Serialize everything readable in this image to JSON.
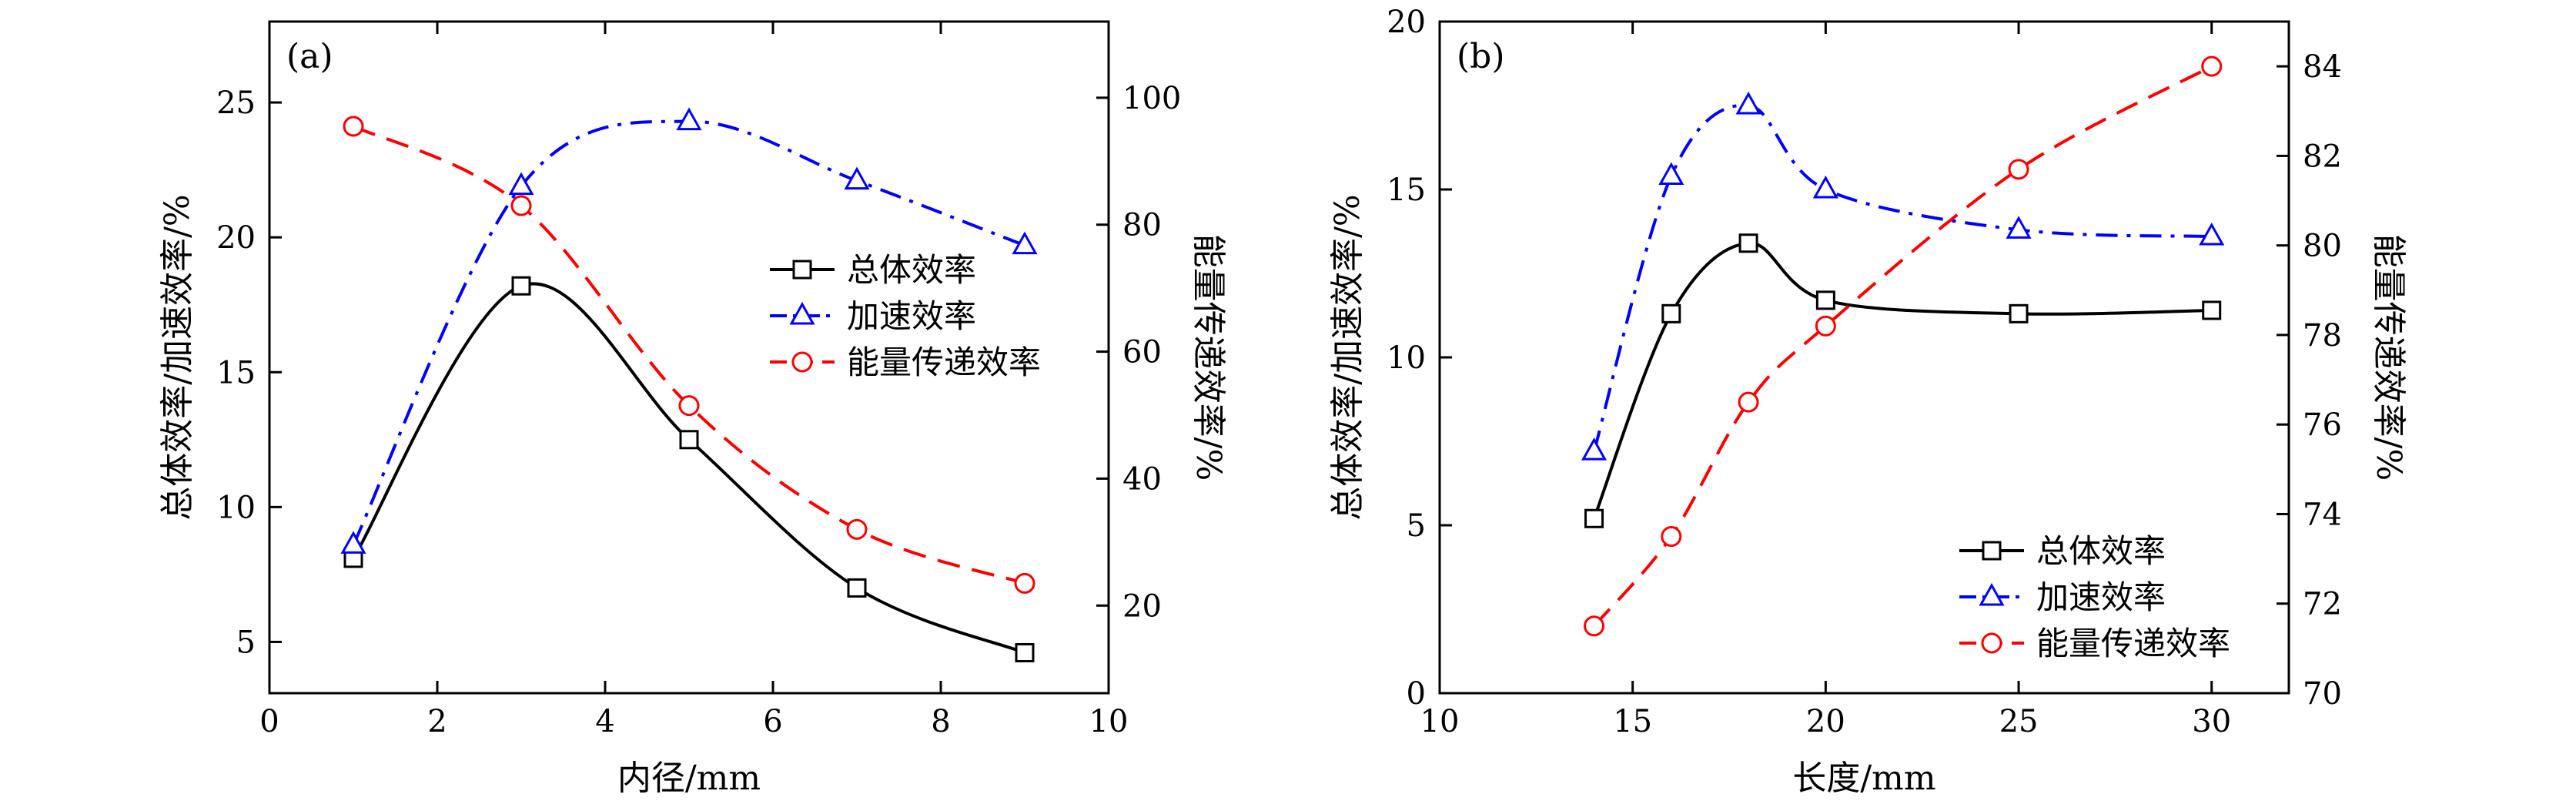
{
  "chart_data": [
    {
      "panel_label": "(a)",
      "type": "line",
      "xlabel": "内径/mm",
      "ylabel_left": "总体效率/加速效率/%",
      "ylabel_right": "能量传递效率/%",
      "xlim": [
        0,
        10
      ],
      "ylim_left": [
        3.1,
        28
      ],
      "ylim_right": [
        6.2,
        112
      ],
      "x_ticks": [
        "0",
        "2",
        "4",
        "6",
        "8",
        "10"
      ],
      "y_left_ticks": [
        "5",
        "10",
        "15",
        "20",
        "25"
      ],
      "y_right_ticks": [
        "20",
        "40",
        "60",
        "80",
        "100"
      ],
      "grid": false,
      "legend_position": "center-right",
      "series": [
        {
          "name": "总体效率",
          "axis": "left",
          "marker": "square",
          "line_style": "solid",
          "color": "#000000",
          "x": [
            1,
            3,
            5,
            7,
            9
          ],
          "y": [
            8.1,
            18.2,
            12.5,
            7.0,
            4.6
          ]
        },
        {
          "name": "加速效率",
          "axis": "left",
          "marker": "triangle",
          "line_style": "dashdot",
          "color": "#0000ff",
          "x": [
            1,
            3,
            5,
            7,
            9
          ],
          "y": [
            8.6,
            21.9,
            24.3,
            22.1,
            19.7
          ]
        },
        {
          "name": "能量传递效率",
          "axis": "right",
          "marker": "circle",
          "line_style": "dashed",
          "color": "#ff0000",
          "x": [
            1,
            3,
            5,
            7,
            9
          ],
          "y": [
            95.5,
            83,
            51.5,
            32,
            23.5
          ]
        }
      ]
    },
    {
      "panel_label": "(b)",
      "type": "line",
      "xlabel": "长度/mm",
      "ylabel_left": "总体效率/加速效率/%",
      "ylabel_right": "能量传递效率/%",
      "xlim": [
        10,
        32
      ],
      "ylim_left": [
        0,
        20
      ],
      "ylim_right": [
        70,
        85
      ],
      "x_ticks": [
        "10",
        "15",
        "20",
        "25",
        "30"
      ],
      "y_left_ticks": [
        "0",
        "5",
        "10",
        "15",
        "20"
      ],
      "y_right_ticks": [
        "70",
        "72",
        "74",
        "76",
        "78",
        "80",
        "82",
        "84"
      ],
      "grid": false,
      "legend_position": "bottom-right",
      "series": [
        {
          "name": "总体效率",
          "axis": "left",
          "marker": "square",
          "line_style": "solid",
          "color": "#000000",
          "x": [
            14,
            16,
            18,
            20,
            25,
            30
          ],
          "y": [
            5.2,
            11.3,
            13.4,
            11.7,
            11.3,
            11.4
          ]
        },
        {
          "name": "加速效率",
          "axis": "left",
          "marker": "triangle",
          "line_style": "dashdot",
          "color": "#0000ff",
          "x": [
            14,
            16,
            18,
            20,
            25,
            30
          ],
          "y": [
            7.2,
            15.4,
            17.5,
            15.0,
            13.8,
            13.6
          ]
        },
        {
          "name": "能量传递效率",
          "axis": "right",
          "marker": "circle",
          "line_style": "dashed",
          "color": "#ff0000",
          "x": [
            14,
            16,
            18,
            20,
            25,
            30
          ],
          "y": [
            71.5,
            73.5,
            76.5,
            78.2,
            81.7,
            84.0
          ]
        }
      ]
    }
  ]
}
